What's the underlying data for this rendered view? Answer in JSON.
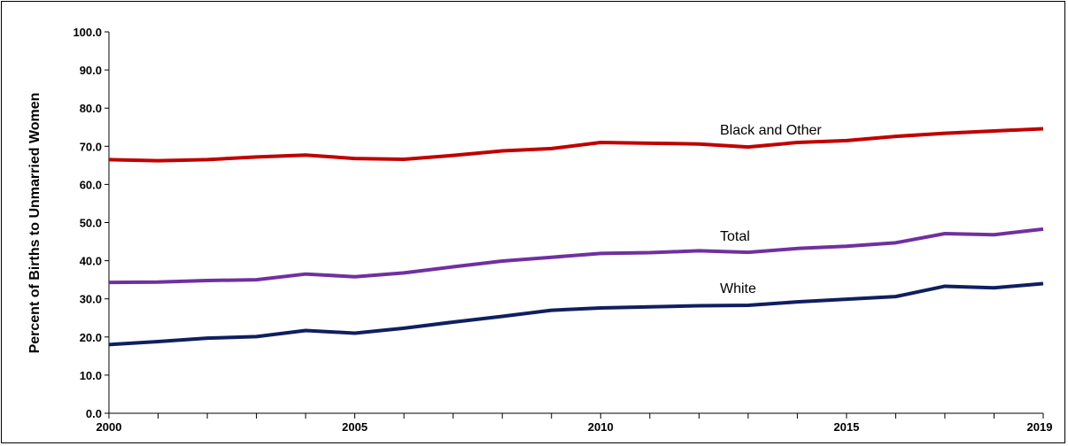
{
  "chart_data": {
    "type": "line",
    "title": "",
    "xlabel": "",
    "ylabel": "Percent of Births to Unmarried Women",
    "xlim": [
      2000,
      2019
    ],
    "ylim": [
      0,
      100
    ],
    "y_ticks": [
      "0.0",
      "10.0",
      "20.0",
      "30.0",
      "40.0",
      "50.0",
      "60.0",
      "70.0",
      "80.0",
      "90.0",
      "100.0"
    ],
    "x_tick_labels": [
      "2000",
      "2005",
      "2010",
      "2015",
      "2019"
    ],
    "grid": false,
    "x": [
      2000,
      2001,
      2002,
      2003,
      2004,
      2005,
      2006,
      2007,
      2008,
      2009,
      2010,
      2011,
      2012,
      2013,
      2014,
      2015,
      2016,
      2017,
      2018,
      2019
    ],
    "series": [
      {
        "name": "Black and Other",
        "color": "#C00000",
        "values": [
          66.5,
          66.2,
          66.5,
          67.2,
          67.7,
          66.8,
          66.6,
          67.6,
          68.8,
          69.4,
          71.0,
          70.8,
          70.6,
          69.8,
          71.0,
          71.5,
          72.6,
          73.4,
          74.0,
          74.6
        ]
      },
      {
        "name": "Total",
        "color": "#7030A0",
        "values": [
          34.3,
          34.4,
          34.8,
          35.0,
          36.5,
          35.8,
          36.8,
          38.4,
          39.9,
          40.9,
          41.9,
          42.1,
          42.6,
          42.2,
          43.2,
          43.8,
          44.7,
          47.1,
          46.8,
          48.3
        ]
      },
      {
        "name": "White",
        "color": "#0F1F5F",
        "values": [
          18.0,
          18.8,
          19.7,
          20.1,
          21.7,
          21.0,
          22.3,
          23.9,
          25.4,
          27.0,
          27.6,
          27.9,
          28.2,
          28.3,
          29.2,
          29.9,
          30.6,
          33.3,
          32.9,
          34.0
        ]
      }
    ]
  }
}
